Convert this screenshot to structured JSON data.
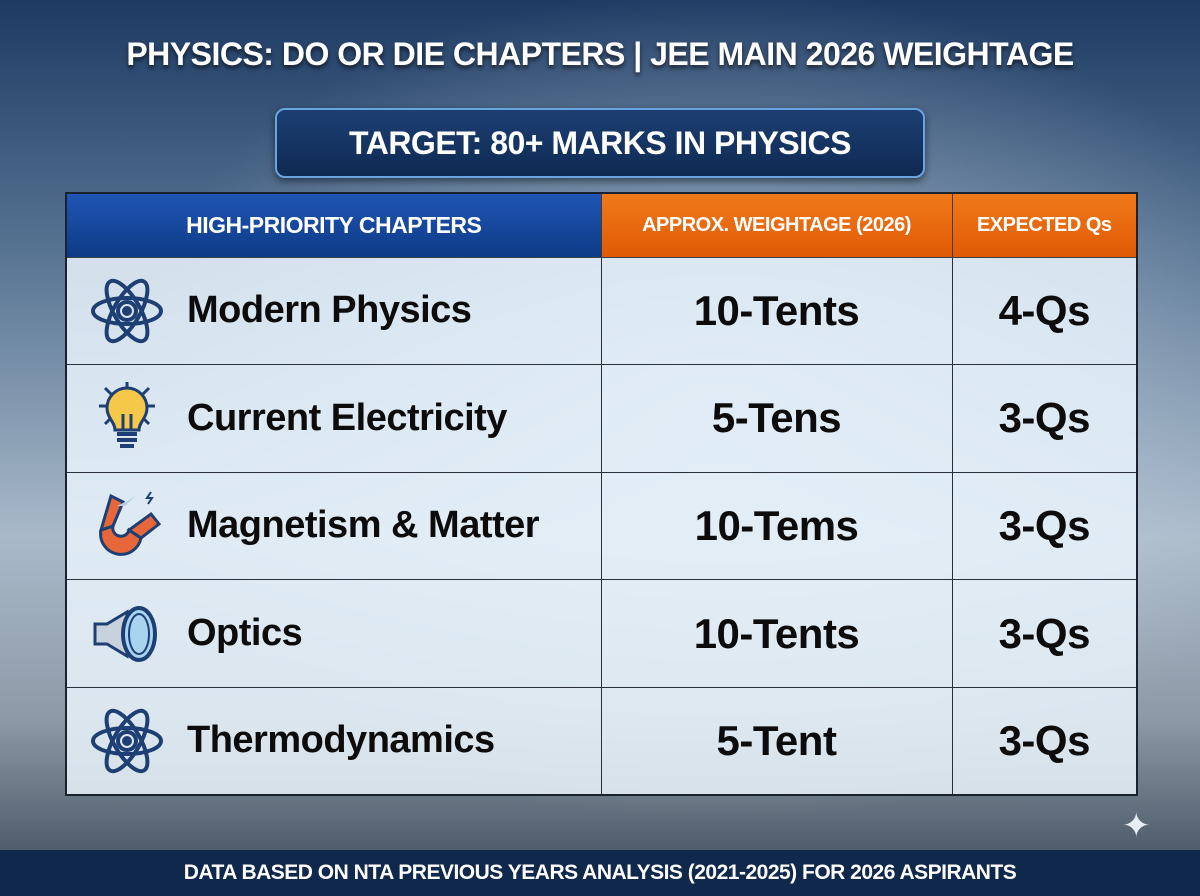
{
  "title": "PHYSICS: DO OR DIE CHAPTERS | JEE MAIN 2026 WEIGHTAGE",
  "target": "TARGET: 80+ MARKS IN PHYSICS",
  "table": {
    "headers": [
      "HIGH-PRIORITY CHAPTERS",
      "APPROX. WEIGHTAGE (2026)",
      "EXPECTED Qs"
    ],
    "header_colors": {
      "chapters": "#1a4fa8",
      "weightage": "#e8650c",
      "expected": "#e8650c"
    },
    "rows": [
      {
        "icon": "atom-icon",
        "chapter": "Modern Physics",
        "weightage": "10-Tents",
        "expected": "4-Qs"
      },
      {
        "icon": "lightbulb-icon",
        "chapter": "Current Electricity",
        "weightage": "5-Tens",
        "expected": "3-Qs"
      },
      {
        "icon": "magnet-icon",
        "chapter": "Magnetism & Matter",
        "weightage": "10-Tems",
        "expected": "3-Qs"
      },
      {
        "icon": "lens-icon",
        "chapter": "Optics",
        "weightage": "10-Tents",
        "expected": "3-Qs"
      },
      {
        "icon": "atom-icon",
        "chapter": "Thermodynamics",
        "weightage": "5-Tent",
        "expected": "3-Qs"
      }
    ]
  },
  "footer": "DATA BASED ON NTA PREVIOUS YEARS ANALYSIS (2021-2025) FOR 2026 ASPIRANTS"
}
